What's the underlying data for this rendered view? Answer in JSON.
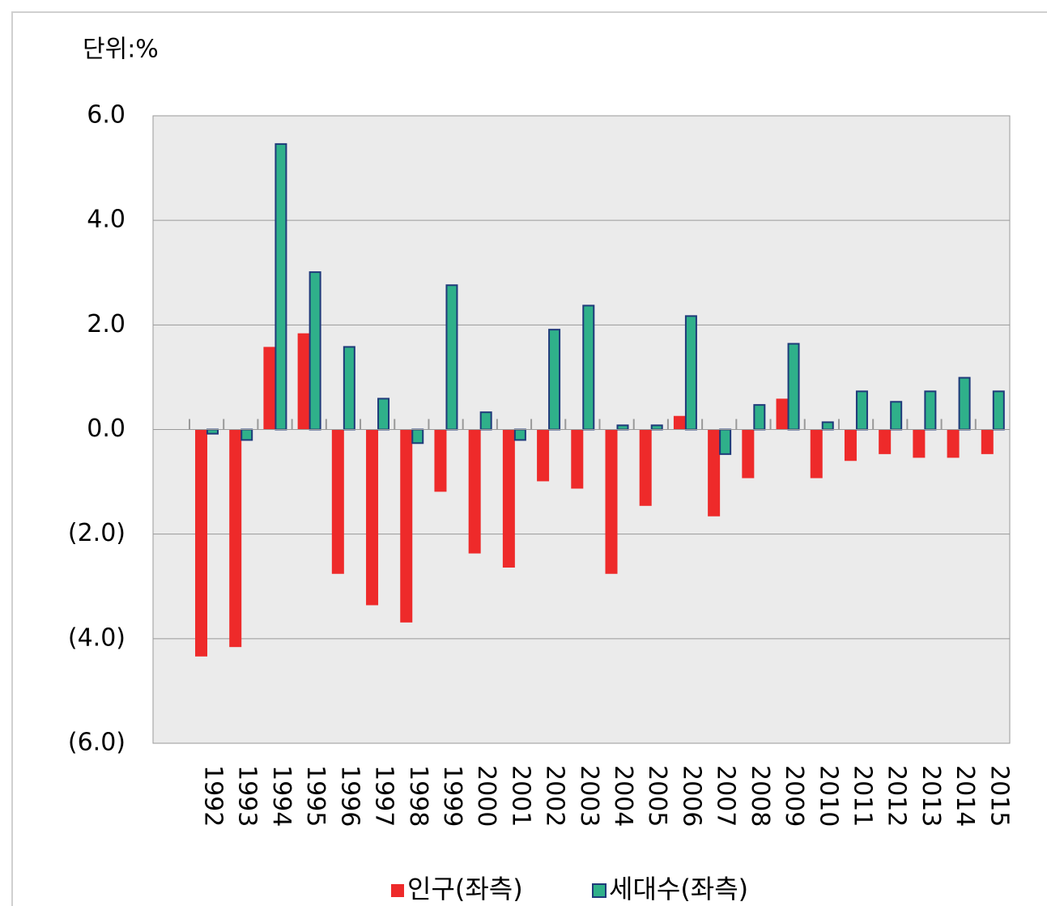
{
  "chart_data": {
    "type": "bar",
    "unit_label": "단위:%",
    "categories": [
      "1992",
      "1993",
      "1994",
      "1995",
      "1996",
      "1997",
      "1998",
      "1999",
      "2000",
      "2001",
      "2002",
      "2003",
      "2004",
      "2005",
      "2006",
      "2007",
      "2008",
      "2009",
      "2010",
      "2011",
      "2012",
      "2013",
      "2014",
      "2015"
    ],
    "series": [
      {
        "name": "인구(좌측)",
        "color": "#ee2a2a",
        "values": [
          -4.34,
          -4.16,
          1.58,
          1.84,
          -2.76,
          -3.36,
          -3.69,
          -1.19,
          -2.37,
          -2.64,
          -0.99,
          -1.13,
          -2.76,
          -1.46,
          0.26,
          -1.66,
          -0.93,
          0.59,
          -0.93,
          -0.6,
          -0.47,
          -0.54,
          -0.54,
          -0.47
        ]
      },
      {
        "name": "세대수(좌측)",
        "color": "#2fb08a",
        "values": [
          -0.08,
          -0.2,
          5.46,
          3.01,
          1.58,
          0.59,
          -0.26,
          2.76,
          0.33,
          -0.2,
          1.91,
          2.37,
          0.08,
          0.08,
          2.17,
          -0.47,
          0.47,
          1.64,
          0.14,
          0.73,
          0.53,
          0.73,
          0.99,
          0.73
        ]
      }
    ],
    "ylim": [
      -6,
      6
    ],
    "yticks": [
      {
        "value": -6,
        "label": "(6.0)"
      },
      {
        "value": -4,
        "label": "(4.0)"
      },
      {
        "value": -2,
        "label": "(2.0)"
      },
      {
        "value": 0,
        "label": "0.0"
      },
      {
        "value": 2,
        "label": "2.0"
      },
      {
        "value": 4,
        "label": "4.0"
      },
      {
        "value": 6,
        "label": "6.0"
      }
    ],
    "grid": true
  }
}
